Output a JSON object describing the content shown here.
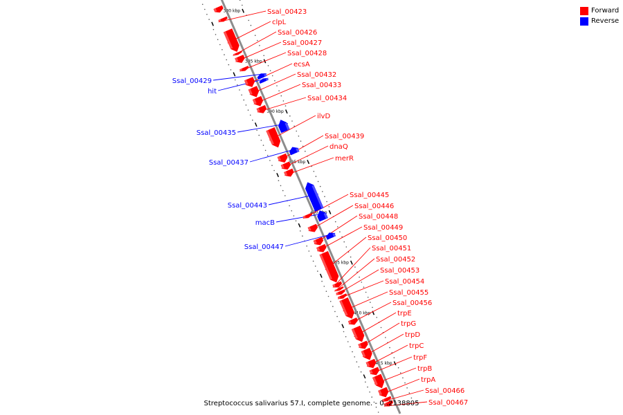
{
  "legend": {
    "forward_label": "Forward",
    "reverse_label": "Reverse",
    "forward_color": "#ff0000",
    "reverse_color": "#0000ff"
  },
  "caption": "Streptococcus salivarius 57.I, complete genome. - 0..2138805",
  "axis_unit": "kbp",
  "ticks": [
    {
      "pos": 380,
      "label": "380 kbp"
    },
    {
      "pos": 385,
      "label": "385 kbp"
    },
    {
      "pos": 390,
      "label": "390 kbp"
    },
    {
      "pos": 395,
      "label": "395 kbp"
    },
    {
      "pos": 400,
      "label": "400 kbp"
    },
    {
      "pos": 405,
      "label": "405 kbp"
    },
    {
      "pos": 410,
      "label": "410 kbp"
    },
    {
      "pos": 415,
      "label": "415 kbp"
    }
  ],
  "genes": [
    {
      "name": "",
      "strand": "+",
      "start": 378.8,
      "end": 379.3
    },
    {
      "name": "Ssal_00423",
      "strand": "+",
      "start": 379.9,
      "end": 380.2
    },
    {
      "name": "clpL",
      "strand": "+",
      "start": 381.1,
      "end": 383.2
    },
    {
      "name": "Ssal_00426",
      "strand": "+",
      "start": 383.3,
      "end": 383.5
    },
    {
      "name": "Ssal_00427",
      "strand": "+",
      "start": 383.7,
      "end": 384.3
    },
    {
      "name": "Ssal_00428",
      "strand": "+",
      "start": 384.8,
      "end": 385.1
    },
    {
      "name": "Ssal_00429",
      "strand": "-",
      "start": 385.9,
      "end": 386.3
    },
    {
      "name": "hit",
      "strand": "-",
      "start": 386.4,
      "end": 386.7
    },
    {
      "name": "ecsA",
      "strand": "+",
      "start": 385.9,
      "end": 386.7
    },
    {
      "name": "Ssal_00432",
      "strand": "+",
      "start": 386.8,
      "end": 387.7
    },
    {
      "name": "Ssal_00433",
      "strand": "+",
      "start": 387.8,
      "end": 388.6
    },
    {
      "name": "Ssal_00434",
      "strand": "+",
      "start": 388.7,
      "end": 389.3
    },
    {
      "name": "Ssal_00435",
      "strand": "-",
      "start": 390.5,
      "end": 391.6
    },
    {
      "name": "ilvD",
      "strand": "+",
      "start": 390.9,
      "end": 392.7
    },
    {
      "name": "Ssal_00437",
      "strand": "-",
      "start": 393.2,
      "end": 393.8
    },
    {
      "name": "Ssal_00439",
      "strand": "+",
      "start": 393.5,
      "end": 394.2
    },
    {
      "name": "dnaQ",
      "strand": "+",
      "start": 394.3,
      "end": 394.9
    },
    {
      "name": "merR",
      "strand": "+",
      "start": 395.0,
      "end": 395.6
    },
    {
      "name": "Ssal_00443",
      "strand": "-",
      "start": 396.7,
      "end": 399.4
    },
    {
      "name": "macB",
      "strand": "-",
      "start": 399.5,
      "end": 400.4
    },
    {
      "name": "Ssal_00445",
      "strand": "+",
      "start": 399.4,
      "end": 399.7
    },
    {
      "name": "Ssal_00446",
      "strand": "+",
      "start": 400.5,
      "end": 401.1
    },
    {
      "name": "Ssal_00447",
      "strand": "-",
      "start": 401.7,
      "end": 402.2
    },
    {
      "name": "Ssal_00448",
      "strand": "+",
      "start": 401.8,
      "end": 402.4
    },
    {
      "name": "Ssal_00449",
      "strand": "+",
      "start": 402.5,
      "end": 403.1
    },
    {
      "name": "Ssal_00450",
      "strand": "+",
      "start": 403.2,
      "end": 406.1
    },
    {
      "name": "Ssal_00451",
      "strand": "+",
      "start": 406.2,
      "end": 406.6
    },
    {
      "name": "Ssal_00452",
      "strand": "+",
      "start": 406.7,
      "end": 406.9
    },
    {
      "name": "Ssal_00453",
      "strand": "+",
      "start": 407.0,
      "end": 407.3
    },
    {
      "name": "Ssal_00454",
      "strand": "+",
      "start": 407.4,
      "end": 407.7
    },
    {
      "name": "Ssal_00455",
      "strand": "+",
      "start": 407.8,
      "end": 409.7
    },
    {
      "name": "Ssal_00456",
      "strand": "+",
      "start": 409.8,
      "end": 410.3
    },
    {
      "name": "trpE",
      "strand": "+",
      "start": 410.6,
      "end": 412.0
    },
    {
      "name": "trpG",
      "strand": "+",
      "start": 412.1,
      "end": 412.7
    },
    {
      "name": "trpD",
      "strand": "+",
      "start": 412.8,
      "end": 413.8
    },
    {
      "name": "trpC",
      "strand": "+",
      "start": 413.9,
      "end": 414.6
    },
    {
      "name": "trpF",
      "strand": "+",
      "start": 414.7,
      "end": 415.3
    },
    {
      "name": "trpB",
      "strand": "+",
      "start": 415.4,
      "end": 416.6
    },
    {
      "name": "trpA",
      "strand": "+",
      "start": 416.7,
      "end": 417.5
    },
    {
      "name": "Ssal_00466",
      "strand": "+",
      "start": 417.6,
      "end": 417.9
    },
    {
      "name": "Ssal_00467",
      "strand": "+",
      "start": 418.0,
      "end": 418.4
    }
  ],
  "labels": {
    "forward": [
      "Ssal_00423",
      "clpL",
      "Ssal_00426",
      "Ssal_00427",
      "Ssal_00428",
      "ecsA",
      "Ssal_00432",
      "Ssal_00433",
      "Ssal_00434",
      "ilvD",
      "Ssal_00439",
      "dnaQ",
      "merR",
      "Ssal_00445",
      "Ssal_00446",
      "Ssal_00448",
      "Ssal_00449",
      "Ssal_00450",
      "Ssal_00451",
      "Ssal_00452",
      "Ssal_00453",
      "Ssal_00454",
      "Ssal_00455",
      "Ssal_00456",
      "trpE",
      "trpG",
      "trpD",
      "trpC",
      "trpF",
      "trpB",
      "trpA",
      "Ssal_00466",
      "Ssal_00467"
    ],
    "reverse": [
      "Ssal_00429",
      "hit",
      "Ssal_00435",
      "Ssal_00437",
      "Ssal_00443",
      "macB",
      "Ssal_00447"
    ]
  }
}
